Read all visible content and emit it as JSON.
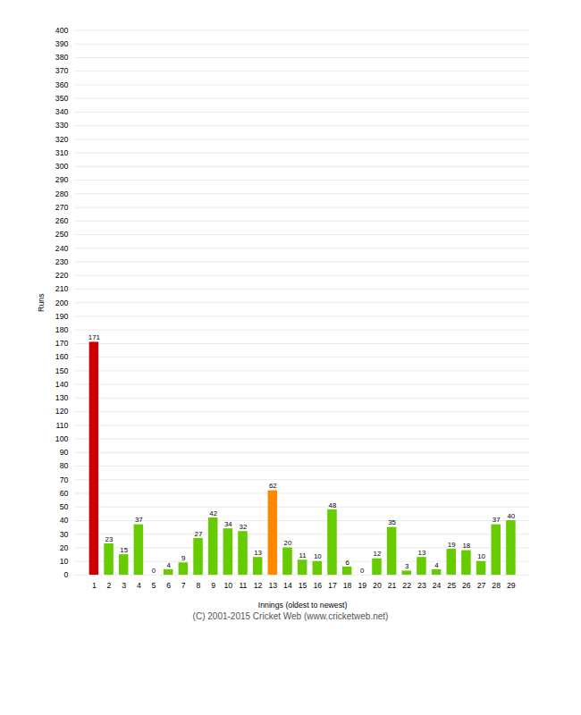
{
  "chart_data": {
    "type": "bar",
    "categories": [
      "1",
      "2",
      "3",
      "4",
      "5",
      "6",
      "7",
      "8",
      "9",
      "10",
      "11",
      "12",
      "13",
      "14",
      "15",
      "16",
      "17",
      "18",
      "19",
      "20",
      "21",
      "22",
      "23",
      "24",
      "25",
      "26",
      "27",
      "28",
      "29"
    ],
    "values": [
      171,
      23,
      15,
      37,
      0,
      4,
      9,
      27,
      42,
      34,
      32,
      13,
      62,
      20,
      11,
      10,
      48,
      6,
      0,
      12,
      35,
      3,
      13,
      4,
      19,
      18,
      10,
      37,
      40
    ],
    "colors": [
      "#cc0000",
      "#66cc00",
      "#66cc00",
      "#66cc00",
      "#66cc00",
      "#66cc00",
      "#66cc00",
      "#66cc00",
      "#66cc00",
      "#66cc00",
      "#66cc00",
      "#66cc00",
      "#ff8800",
      "#66cc00",
      "#66cc00",
      "#66cc00",
      "#66cc00",
      "#66cc00",
      "#66cc00",
      "#66cc00",
      "#66cc00",
      "#66cc00",
      "#66cc00",
      "#66cc00",
      "#66cc00",
      "#66cc00",
      "#66cc00",
      "#66cc00",
      "#66cc00"
    ],
    "xlabel": "Innings (oldest to newest)",
    "ylabel": "Runs",
    "ylim": [
      0,
      400
    ],
    "yticks": [
      0,
      10,
      20,
      30,
      40,
      50,
      60,
      70,
      80,
      90,
      100,
      110,
      120,
      130,
      140,
      150,
      160,
      170,
      180,
      190,
      200,
      210,
      220,
      230,
      240,
      250,
      260,
      270,
      280,
      290,
      300,
      310,
      320,
      330,
      340,
      350,
      360,
      370,
      380,
      390,
      400
    ],
    "grid": true,
    "data_labels": true,
    "caption": "(C) 2001-2015 Cricket Web (www.cricketweb.net)"
  }
}
